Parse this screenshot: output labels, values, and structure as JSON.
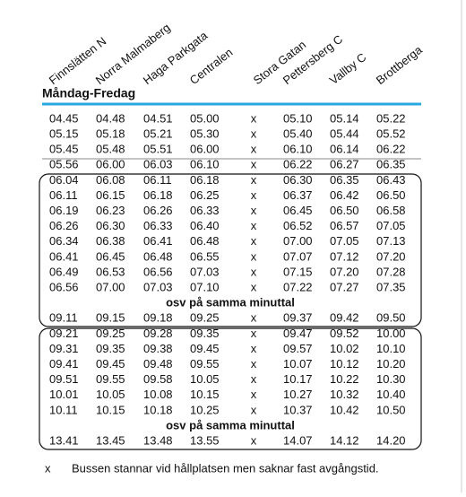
{
  "header": {
    "stops": [
      "Finnslätten N",
      "Norra Malmaberg",
      "Haga Parkgata",
      "Centralen",
      "Stora Gatan",
      "Pettersberg C",
      "Vallby C",
      "Brottberga"
    ],
    "title": "Måndag-Fredag"
  },
  "table": {
    "top_rows": [
      [
        "04.45",
        "04.48",
        "04.51",
        "05.00",
        "x",
        "05.10",
        "05.14",
        "05.22"
      ],
      [
        "05.15",
        "05.18",
        "05.21",
        "05.30",
        "x",
        "05.40",
        "05.44",
        "05.52"
      ],
      [
        "05.45",
        "05.48",
        "05.51",
        "06.00",
        "x",
        "06.10",
        "06.14",
        "06.22"
      ],
      [
        "05.56",
        "06.00",
        "06.03",
        "06.10",
        "x",
        "06.22",
        "06.27",
        "06.35"
      ]
    ],
    "groups": [
      {
        "rows": [
          [
            "06.04",
            "06.08",
            "06.11",
            "06.18",
            "x",
            "06.30",
            "06.35",
            "06.43"
          ],
          [
            "06.11",
            "06.15",
            "06.18",
            "06.25",
            "x",
            "06.37",
            "06.42",
            "06.50"
          ],
          [
            "06.19",
            "06.23",
            "06.26",
            "06.33",
            "x",
            "06.45",
            "06.50",
            "06.58"
          ],
          [
            "06.26",
            "06.30",
            "06.33",
            "06.40",
            "x",
            "06.52",
            "06.57",
            "07.05"
          ],
          [
            "06.34",
            "06.38",
            "06.41",
            "06.48",
            "x",
            "07.00",
            "07.05",
            "07.13"
          ],
          [
            "06.41",
            "06.45",
            "06.48",
            "06.55",
            "x",
            "07.07",
            "07.12",
            "07.20"
          ],
          [
            "06.49",
            "06.53",
            "06.56",
            "07.03",
            "x",
            "07.15",
            "07.20",
            "07.28"
          ],
          [
            "06.56",
            "07.00",
            "07.03",
            "07.10",
            "x",
            "07.22",
            "07.27",
            "07.35"
          ]
        ],
        "note": "osv på samma minuttal",
        "final_row": [
          "09.11",
          "09.15",
          "09.18",
          "09.25",
          "x",
          "09.37",
          "09.42",
          "09.50"
        ]
      },
      {
        "rows": [
          [
            "09.21",
            "09.25",
            "09.28",
            "09.35",
            "x",
            "09.47",
            "09.52",
            "10.00"
          ],
          [
            "09.31",
            "09.35",
            "09.38",
            "09.45",
            "x",
            "09.57",
            "10.02",
            "10.10"
          ],
          [
            "09.41",
            "09.45",
            "09.48",
            "09.55",
            "x",
            "10.07",
            "10.12",
            "10.20"
          ],
          [
            "09.51",
            "09.55",
            "09.58",
            "10.05",
            "x",
            "10.17",
            "10.22",
            "10.30"
          ],
          [
            "10.01",
            "10.05",
            "10.08",
            "10.15",
            "x",
            "10.27",
            "10.32",
            "10.40"
          ],
          [
            "10.11",
            "10.15",
            "10.18",
            "10.25",
            "x",
            "10.37",
            "10.42",
            "10.50"
          ]
        ],
        "note": "osv på samma minuttal",
        "final_row": [
          "13.41",
          "13.45",
          "13.48",
          "13.55",
          "x",
          "14.07",
          "14.12",
          "14.20"
        ]
      }
    ]
  },
  "footnote": {
    "symbol": "x",
    "text": "Bussen stannar vid hållplatsen men saknar fast avgångstid."
  }
}
